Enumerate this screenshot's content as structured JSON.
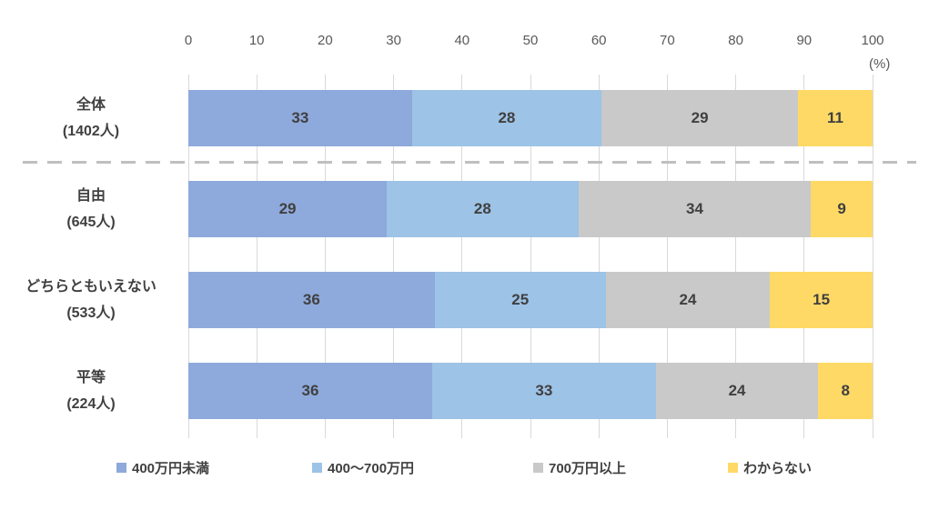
{
  "chart_data": {
    "type": "bar",
    "variant": "horizontal-stacked-percent",
    "axis_unit": "(%)",
    "x_ticks": [
      0,
      10,
      20,
      30,
      40,
      50,
      60,
      70,
      80,
      90,
      100
    ],
    "xlim": [
      0,
      100
    ],
    "grid": true,
    "legend_position": "bottom",
    "divider_after_row_index": 0,
    "categories": [
      {
        "label": "全体",
        "sub_label": "(1402人)"
      },
      {
        "label": "自由",
        "sub_label": "(645人)"
      },
      {
        "label": "どちらともいえない",
        "sub_label": "(533人)"
      },
      {
        "label": "平等",
        "sub_label": "(224人)"
      }
    ],
    "series": [
      {
        "name": "400万円未満",
        "color": "#8ea9db",
        "values": [
          33,
          29,
          36,
          36
        ]
      },
      {
        "name": "400～700万円",
        "color": "#9dc3e6",
        "values": [
          28,
          28,
          25,
          33
        ]
      },
      {
        "name": "700万円以上",
        "color": "#c9c9c9",
        "values": [
          29,
          34,
          24,
          24
        ]
      },
      {
        "name": "わからない",
        "color": "#ffd966",
        "values": [
          11,
          9,
          15,
          8
        ]
      }
    ]
  },
  "colors": {
    "gridline": "#d9d9d9",
    "divider": "#bfbfbf",
    "axis_text": "#595959",
    "label_text": "#404040",
    "background": "#ffffff"
  },
  "layout_values": {
    "legend_x_positions": [
      128,
      343,
      586,
      800
    ],
    "row_tops_in_plot": [
      17,
      117,
      217,
      317
    ]
  }
}
